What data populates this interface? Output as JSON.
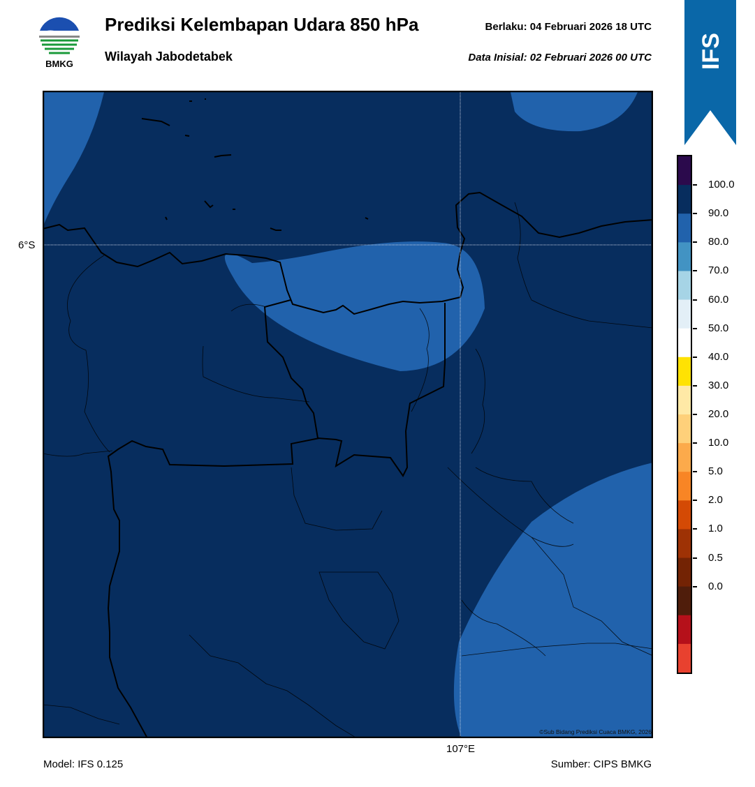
{
  "header": {
    "title": "Prediksi Kelembapan Udara 850 hPa",
    "region": "Wilayah Jabodetabek",
    "valid_label": "Berlaku:  04 Februari 2026 18 UTC",
    "init_label": "Data Inisial:  02 Februari 2026 00 UTC"
  },
  "logo": {
    "text": "BMKG",
    "icon": "bmkg-logo"
  },
  "badge": {
    "text": "IFS",
    "color": "#0a67a8"
  },
  "map": {
    "lat_label": "6°S",
    "lon_label": "107°E",
    "credit": "©Sub Bidang Prediksi Cuaca BMKG, 2026",
    "background_color": "#072d5e",
    "band_color": "#2162ac",
    "grid_color": "#d0d8e8"
  },
  "colorbar": {
    "labels": [
      "100.0",
      "90.0",
      "80.0",
      "70.0",
      "60.0",
      "50.0",
      "40.0",
      "30.0",
      "20.0",
      "10.0",
      "5.0",
      "2.0",
      "1.0",
      "0.5",
      "0.0"
    ],
    "colors": [
      "#2b0a4c",
      "#072d5e",
      "#2162ac",
      "#4293c3",
      "#a6d4e6",
      "#e3eff7",
      "#ffffff",
      "#ffe203",
      "#ffe9a6",
      "#fed07a",
      "#fcaa4b",
      "#f88525",
      "#d44a05",
      "#9e3205",
      "#732304",
      "#4f1d0b",
      "#b5101a",
      "#e8412f"
    ]
  },
  "footer": {
    "model": "Model: IFS 0.125",
    "source": "Sumber: CIPS BMKG"
  }
}
